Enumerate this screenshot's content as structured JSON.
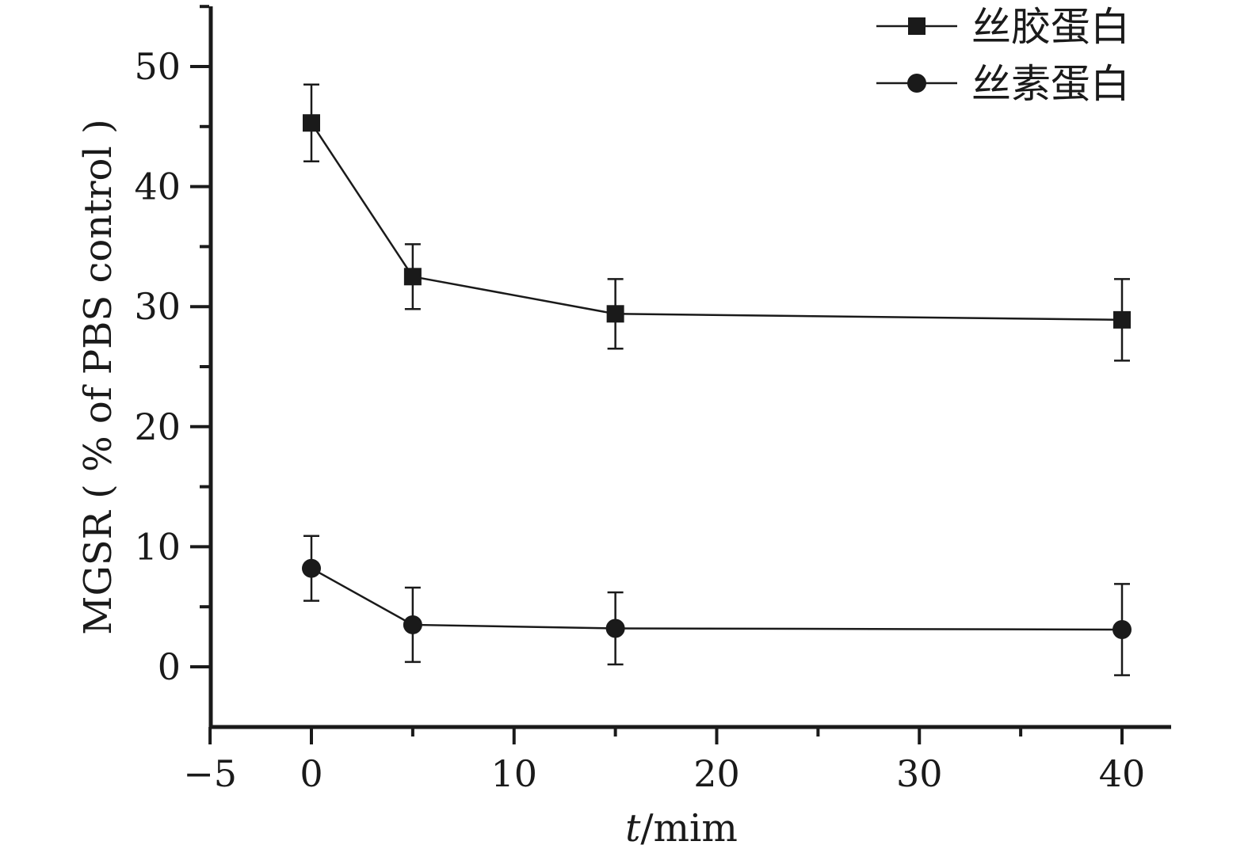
{
  "chart_data": {
    "type": "line",
    "xlabel_italic": "t",
    "xlabel_rest": "/mim",
    "ylabel": "MGSR ( % of PBS control )",
    "xlim": [
      -5,
      42
    ],
    "ylim": [
      -5,
      55
    ],
    "xticks": [
      -5,
      0,
      10,
      20,
      30,
      40
    ],
    "xtick_labels": [
      "−5",
      "0",
      "10",
      "20",
      "30",
      "40"
    ],
    "yticks": [
      0,
      10,
      20,
      30,
      40,
      50
    ],
    "ytick_labels": [
      "0",
      "10",
      "20",
      "30",
      "40",
      "50"
    ],
    "legend_position": "top-right",
    "grid": false,
    "series": [
      {
        "name": "丝胶蛋白",
        "marker": "square",
        "x": [
          0,
          5,
          15,
          40
        ],
        "y": [
          45.3,
          32.5,
          29.4,
          28.9
        ],
        "err": [
          3.2,
          2.7,
          2.9,
          3.4
        ]
      },
      {
        "name": "丝素蛋白",
        "marker": "circle",
        "x": [
          0,
          5,
          15,
          40
        ],
        "y": [
          8.2,
          3.5,
          3.2,
          3.1
        ],
        "err": [
          2.7,
          3.1,
          3.0,
          3.8
        ]
      }
    ]
  }
}
